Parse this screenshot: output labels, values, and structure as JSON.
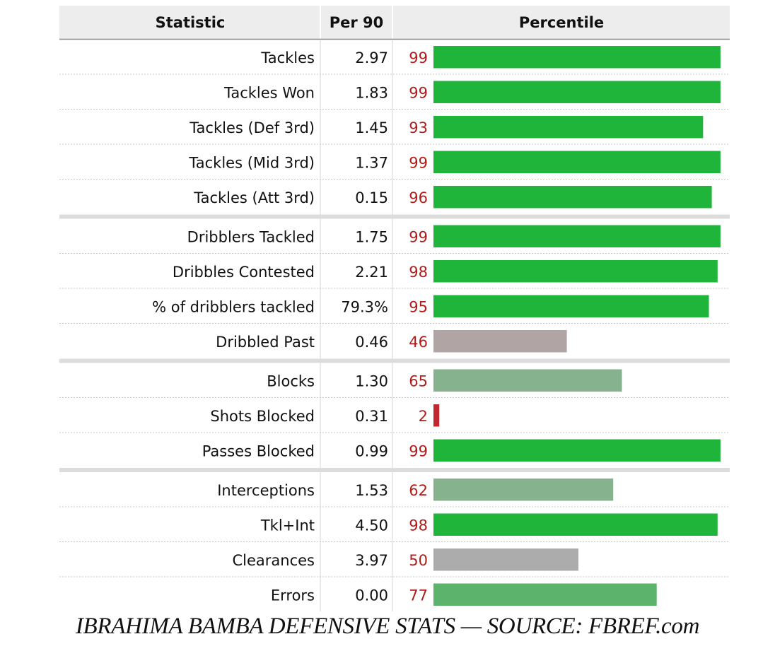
{
  "table": {
    "headers": {
      "statistic": "Statistic",
      "per90": "Per 90",
      "percentile": "Percentile"
    },
    "groups": [
      [
        {
          "stat": "Tackles",
          "per90": "2.97",
          "percentile": 99
        },
        {
          "stat": "Tackles Won",
          "per90": "1.83",
          "percentile": 99
        },
        {
          "stat": "Tackles (Def 3rd)",
          "per90": "1.45",
          "percentile": 93
        },
        {
          "stat": "Tackles (Mid 3rd)",
          "per90": "1.37",
          "percentile": 99
        },
        {
          "stat": "Tackles (Att 3rd)",
          "per90": "0.15",
          "percentile": 96
        }
      ],
      [
        {
          "stat": "Dribblers Tackled",
          "per90": "1.75",
          "percentile": 99
        },
        {
          "stat": "Dribbles Contested",
          "per90": "2.21",
          "percentile": 98
        },
        {
          "stat": "% of dribblers tackled",
          "per90": "79.3%",
          "percentile": 95
        },
        {
          "stat": "Dribbled Past",
          "per90": "0.46",
          "percentile": 46
        }
      ],
      [
        {
          "stat": "Blocks",
          "per90": "1.30",
          "percentile": 65
        },
        {
          "stat": "Shots Blocked",
          "per90": "0.31",
          "percentile": 2
        },
        {
          "stat": "Passes Blocked",
          "per90": "0.99",
          "percentile": 99
        }
      ],
      [
        {
          "stat": "Interceptions",
          "per90": "1.53",
          "percentile": 62
        },
        {
          "stat": "Tkl+Int",
          "per90": "4.50",
          "percentile": 98
        },
        {
          "stat": "Clearances",
          "per90": "3.97",
          "percentile": 50
        },
        {
          "stat": "Errors",
          "per90": "0.00",
          "percentile": 77
        }
      ]
    ]
  },
  "caption": "IBRAHIMA BAMBA DEFENSIVE STATS — SOURCE: FBREF.com",
  "colors": {
    "header_bg": "#ededed",
    "percentile_text": "#b31b1b",
    "bar_elite": "#1fb53a",
    "bar_high": "#5cb36b",
    "bar_above_avg": "#86b38e",
    "bar_average": "#acacac",
    "bar_below_avg": "#b0a4a4",
    "bar_poor": "#c2262f"
  },
  "chart_data": {
    "type": "bar",
    "orientation": "horizontal",
    "title": "",
    "xlabel": "Percentile",
    "ylabel": "",
    "xlim": [
      0,
      100
    ],
    "categories": [
      "Tackles",
      "Tackles Won",
      "Tackles (Def 3rd)",
      "Tackles (Mid 3rd)",
      "Tackles (Att 3rd)",
      "Dribblers Tackled",
      "Dribbles Contested",
      "% of dribblers tackled",
      "Dribbled Past",
      "Blocks",
      "Shots Blocked",
      "Passes Blocked",
      "Interceptions",
      "Tkl+Int",
      "Clearances",
      "Errors"
    ],
    "series": [
      {
        "name": "Percentile",
        "values": [
          99,
          99,
          93,
          99,
          96,
          99,
          98,
          95,
          46,
          65,
          2,
          99,
          62,
          98,
          50,
          77
        ]
      }
    ],
    "legend": "none"
  }
}
